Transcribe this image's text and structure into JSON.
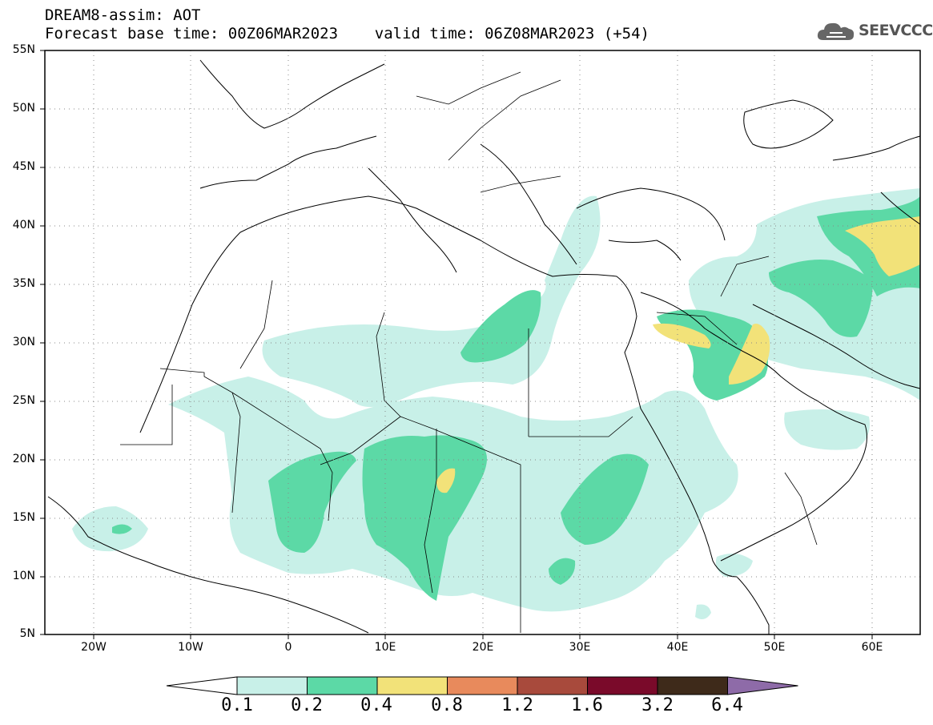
{
  "title": {
    "line1": "DREAM8-assim: AOT",
    "line2": "Forecast base time: 00Z06MAR2023    valid time: 06Z08MAR2023 (+54)"
  },
  "logo": {
    "text": "SEEVCCC",
    "icon": "cloud-icon"
  },
  "map": {
    "lat_range": [
      5,
      55
    ],
    "lon_range": [
      -25,
      65
    ],
    "lat_ticks": [
      "55N",
      "50N",
      "45N",
      "40N",
      "35N",
      "30N",
      "25N",
      "20N",
      "15N",
      "10N",
      "5N"
    ],
    "lon_ticks": [
      "20W",
      "10W",
      "0",
      "10E",
      "20E",
      "30E",
      "40E",
      "50E",
      "60E"
    ],
    "gridlines": "dotted"
  },
  "colorbar": {
    "labels": [
      "0.1",
      "0.2",
      "0.4",
      "0.8",
      "1.2",
      "1.6",
      "3.2",
      "6.4"
    ],
    "colors": [
      "#c8f0e8",
      "#5cd9a6",
      "#f2e279",
      "#e88a5c",
      "#a84a3c",
      "#7a0a2a",
      "#3e2a1a",
      "#8e6ba8"
    ]
  }
}
